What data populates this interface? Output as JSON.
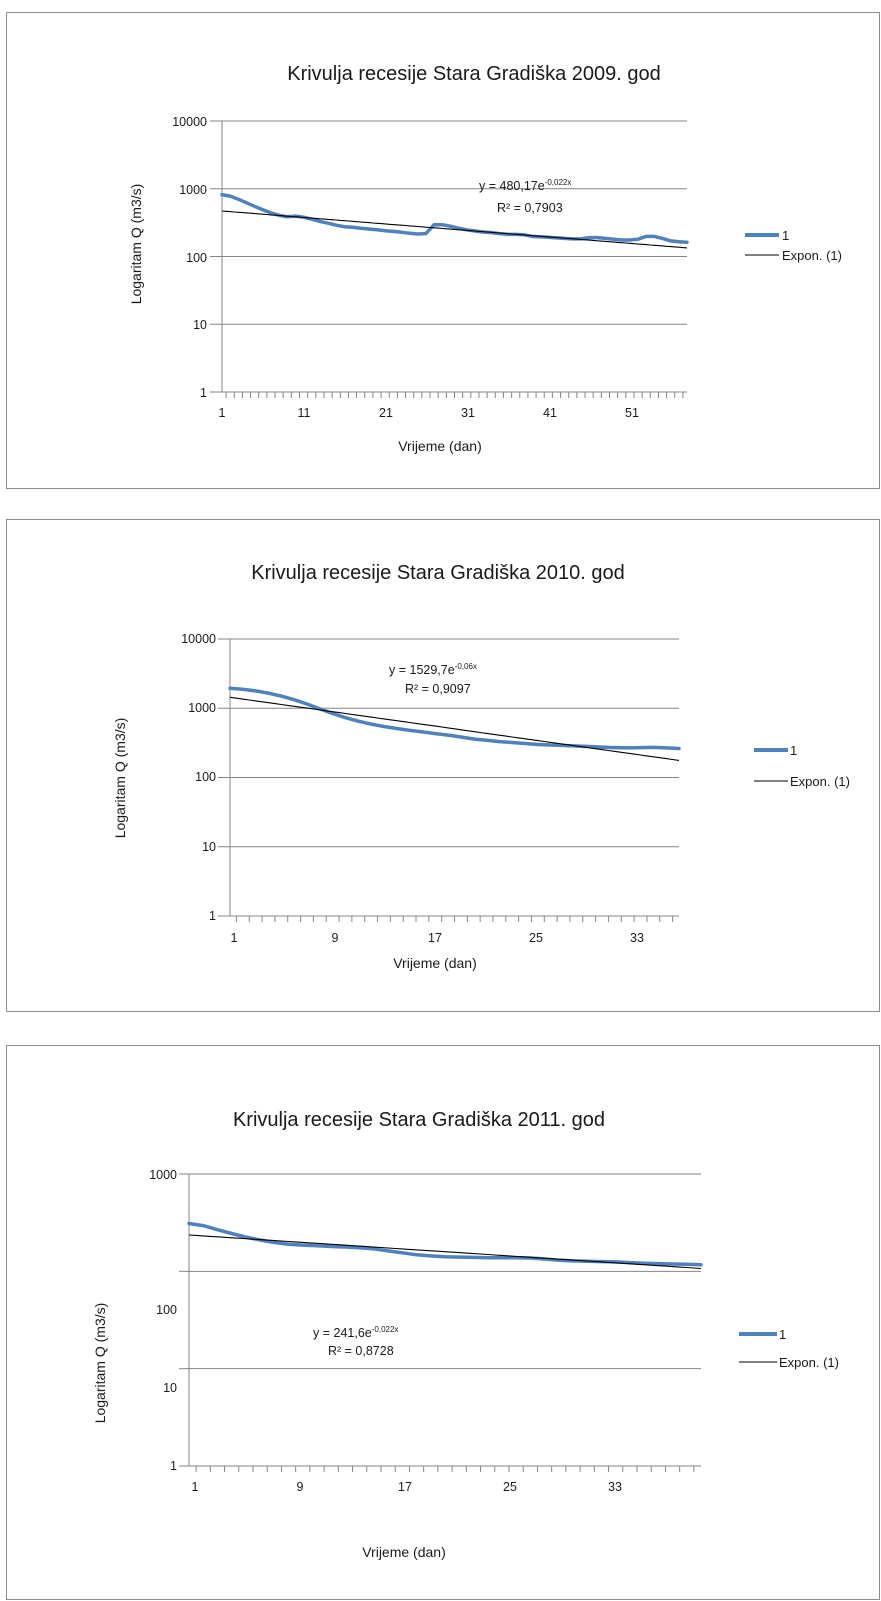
{
  "colors": {
    "series": "#4f81bd",
    "trend": "#000000",
    "grid": "#868686",
    "axis": "#868686"
  },
  "charts": [
    {
      "title": "Krivulja recesije Stara Gradiška 2009. god",
      "xlabel": "Vrijeme (dan)",
      "ylabel": "Logaritam Q (m3/s)",
      "y_ticks": [
        "1",
        "10",
        "100",
        "1000",
        "10000"
      ],
      "x_ticks": [
        "1",
        "11",
        "21",
        "31",
        "41",
        "51"
      ],
      "equation_main": "y = 480,17e",
      "equation_sup": "-0,022x",
      "r2": "R² = 0,7903",
      "legend": [
        "1",
        "Expon. (1)"
      ]
    },
    {
      "title": "Krivulja recesije Stara Gradiška 2010. god",
      "xlabel": "Vrijeme (dan)",
      "ylabel": "Logaritam Q (m3/s)",
      "y_ticks": [
        "1",
        "10",
        "100",
        "1000",
        "10000"
      ],
      "x_ticks": [
        "1",
        "9",
        "17",
        "25",
        "33"
      ],
      "equation_main": "y = 1529,7e",
      "equation_sup": "-0,06x",
      "r2": "R² = 0,9097",
      "legend": [
        "1",
        "Expon. (1)"
      ]
    },
    {
      "title": "Krivulja recesije Stara Gradiška 2011. god",
      "xlabel": "Vrijeme  (dan)",
      "ylabel": "Logaritam Q (m3/s)",
      "y_ticks": [
        "1",
        "10",
        "100",
        "1000"
      ],
      "x_ticks": [
        "1",
        "9",
        "17",
        "25",
        "33"
      ],
      "equation_main": "y = 241,6e",
      "equation_sup": "-0,022x",
      "r2": "R² = 0,8728",
      "legend": [
        "1",
        "Expon. (1)"
      ]
    }
  ],
  "chart_data": [
    {
      "type": "line",
      "title": "Krivulja recesije Stara Gradiška 2009. god",
      "xlabel": "Vrijeme (dan)",
      "ylabel": "Logaritam Q (m3/s)",
      "y_scale": "log",
      "ylim": [
        1,
        10000
      ],
      "xlim": [
        1,
        58
      ],
      "grid": true,
      "legend_position": "right",
      "series": [
        {
          "name": "1",
          "x": [
            1,
            2,
            3,
            4,
            5,
            6,
            7,
            8,
            9,
            10,
            11,
            12,
            13,
            14,
            15,
            16,
            17,
            18,
            19,
            20,
            21,
            22,
            23,
            24,
            25,
            26,
            27,
            28,
            29,
            30,
            31,
            32,
            33,
            34,
            35,
            36,
            37,
            38,
            39,
            40,
            41,
            42,
            43,
            44,
            45,
            46,
            47,
            48,
            49,
            50,
            51,
            52,
            53,
            54,
            55,
            56,
            57,
            58
          ],
          "y": [
            820,
            780,
            700,
            620,
            550,
            490,
            440,
            405,
            385,
            395,
            380,
            355,
            330,
            310,
            290,
            275,
            270,
            262,
            255,
            248,
            240,
            235,
            228,
            220,
            215,
            218,
            295,
            295,
            280,
            262,
            248,
            238,
            230,
            225,
            218,
            212,
            212,
            210,
            198,
            195,
            192,
            188,
            185,
            182,
            182,
            190,
            190,
            185,
            180,
            175,
            175,
            180,
            198,
            198,
            185,
            170,
            165,
            162
          ]
        },
        {
          "name": "Expon. (1)",
          "a": 480.17,
          "b": -0.022,
          "x_range": [
            1,
            58
          ]
        }
      ],
      "annotations": [
        "y = 480,17e-0,022x",
        "R² = 0,7903"
      ]
    },
    {
      "type": "line",
      "title": "Krivulja recesije Stara Gradiška 2010. god",
      "xlabel": "Vrijeme (dan)",
      "ylabel": "Logaritam Q (m3/s)",
      "y_scale": "log",
      "ylim": [
        1,
        10000
      ],
      "xlim": [
        1,
        36
      ],
      "grid": true,
      "legend_position": "right",
      "series": [
        {
          "name": "1",
          "x": [
            1,
            2,
            3,
            4,
            5,
            6,
            7,
            8,
            9,
            10,
            11,
            12,
            13,
            14,
            15,
            16,
            17,
            18,
            19,
            20,
            21,
            22,
            23,
            24,
            25,
            26,
            27,
            28,
            29,
            30,
            31,
            32,
            33,
            34,
            35,
            36
          ],
          "y": [
            1950,
            1880,
            1780,
            1650,
            1500,
            1330,
            1150,
            980,
            840,
            730,
            650,
            590,
            545,
            510,
            480,
            455,
            430,
            410,
            385,
            360,
            345,
            330,
            320,
            310,
            300,
            295,
            290,
            285,
            280,
            275,
            270,
            268,
            270,
            272,
            268,
            262
          ]
        },
        {
          "name": "Expon. (1)",
          "a": 1529.7,
          "b": -0.06,
          "x_range": [
            1,
            36
          ]
        }
      ],
      "annotations": [
        "y = 1529,7e-0,06x",
        "R² = 0,9097"
      ]
    },
    {
      "type": "line",
      "title": "Krivulja recesije Stara Gradiška 2011. god",
      "xlabel": "Vrijeme  (dan)",
      "ylabel": "Logaritam Q (m3/s)",
      "y_scale": "log",
      "ylim": [
        1,
        1000
      ],
      "xlim": [
        1,
        37
      ],
      "grid": true,
      "legend_position": "right",
      "series": [
        {
          "name": "1",
          "x": [
            1,
            2,
            3,
            4,
            5,
            6,
            7,
            8,
            9,
            10,
            11,
            12,
            13,
            14,
            15,
            16,
            17,
            18,
            19,
            20,
            21,
            22,
            23,
            24,
            25,
            26,
            27,
            28,
            29,
            30,
            31,
            32,
            33,
            34,
            35,
            36,
            37
          ],
          "y": [
            310,
            295,
            268,
            245,
            225,
            210,
            198,
            190,
            186,
            183,
            180,
            178,
            175,
            170,
            162,
            155,
            148,
            144,
            141,
            140,
            139,
            138,
            138,
            138,
            137,
            134,
            130,
            128,
            127,
            126,
            125,
            123,
            121,
            120,
            119,
            118,
            117
          ]
        },
        {
          "name": "Expon. (1)",
          "a": 241.6,
          "b": -0.022,
          "x_range": [
            1,
            37
          ]
        }
      ],
      "annotations": [
        "y = 241,6e-0,022x",
        "R² = 0,8728"
      ]
    }
  ]
}
